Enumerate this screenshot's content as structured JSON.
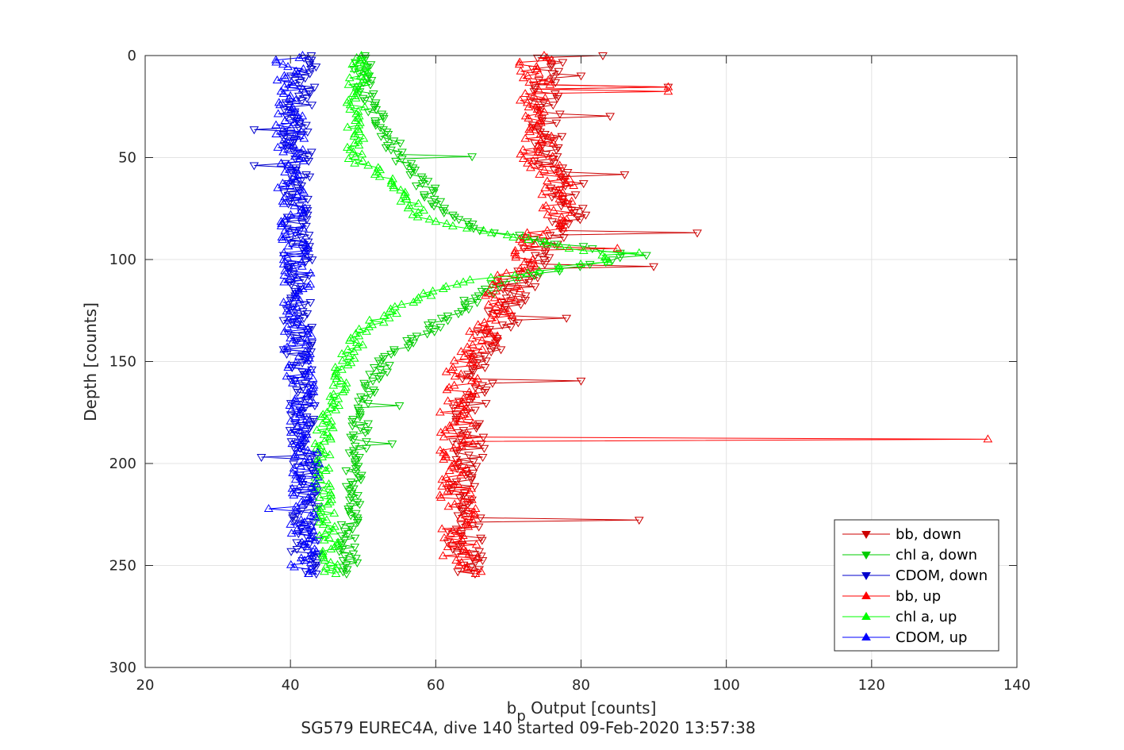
{
  "chart_data": {
    "type": "line",
    "xlabel": {
      "main": "b",
      "sub": "p",
      "rest": " Output [counts]"
    },
    "ylabel": "Depth [counts]",
    "caption": "SG579 EUREC4A, dive 140 started 09-Feb-2020 13:57:38",
    "xlim": [
      20,
      140
    ],
    "ylim": [
      0,
      300
    ],
    "y_reversed": true,
    "x_ticks": [
      "20",
      "40",
      "60",
      "80",
      "100",
      "120",
      "140"
    ],
    "y_ticks": [
      "0",
      "50",
      "100",
      "150",
      "200",
      "250",
      "300"
    ],
    "grid": true,
    "legend_position": "bottom-right",
    "legend": [
      {
        "label": "bb, down",
        "color": "#cc0000",
        "marker": "down"
      },
      {
        "label": "chl a, down",
        "color": "#00cc00",
        "marker": "down"
      },
      {
        "label": "CDOM, down",
        "color": "#0000cc",
        "marker": "down"
      },
      {
        "label": "bb, up",
        "color": "#ff0000",
        "marker": "up"
      },
      {
        "label": "chl a, up",
        "color": "#00ff00",
        "marker": "up"
      },
      {
        "label": "CDOM, up",
        "color": "#0000ff",
        "marker": "up"
      }
    ],
    "series": [
      {
        "name": "bb, down",
        "color": "#cc0000",
        "marker": "down",
        "profile": [
          [
            0,
            75
          ],
          [
            20,
            75
          ],
          [
            50,
            75
          ],
          [
            60,
            78
          ],
          [
            80,
            79
          ],
          [
            90,
            75
          ],
          [
            100,
            74
          ],
          [
            110,
            72
          ],
          [
            130,
            69
          ],
          [
            150,
            66
          ],
          [
            170,
            65
          ],
          [
            200,
            64
          ],
          [
            230,
            64
          ],
          [
            255,
            64
          ]
        ],
        "jitter": 2.5,
        "spikes": [
          [
            0,
            83
          ],
          [
            10,
            80
          ],
          [
            15,
            92
          ],
          [
            30,
            84
          ],
          [
            58,
            86
          ],
          [
            87,
            96
          ],
          [
            103,
            90
          ],
          [
            129,
            78
          ],
          [
            159,
            80
          ],
          [
            228,
            88
          ]
        ]
      },
      {
        "name": "chl a, down",
        "color": "#00cc00",
        "marker": "down",
        "profile": [
          [
            0,
            50
          ],
          [
            15,
            50
          ],
          [
            25,
            51
          ],
          [
            35,
            53
          ],
          [
            50,
            55
          ],
          [
            60,
            58
          ],
          [
            75,
            60
          ],
          [
            85,
            66
          ],
          [
            98,
            86
          ],
          [
            103,
            80
          ],
          [
            110,
            70
          ],
          [
            120,
            65
          ],
          [
            130,
            61
          ],
          [
            140,
            57
          ],
          [
            150,
            53
          ],
          [
            170,
            50
          ],
          [
            200,
            49
          ],
          [
            230,
            48
          ],
          [
            255,
            48
          ]
        ],
        "jitter": 1.3,
        "spikes": [
          [
            50,
            65
          ],
          [
            98,
            89
          ],
          [
            190,
            54
          ],
          [
            172,
            55
          ]
        ]
      },
      {
        "name": "CDOM, down",
        "color": "#0000cc",
        "marker": "down",
        "profile": [
          [
            0,
            42
          ],
          [
            30,
            41
          ],
          [
            60,
            41
          ],
          [
            100,
            41
          ],
          [
            150,
            41
          ],
          [
            200,
            42
          ],
          [
            230,
            42
          ],
          [
            255,
            42
          ]
        ],
        "jitter": 2.0,
        "spikes": [
          [
            27,
            33
          ],
          [
            36,
            35
          ],
          [
            54,
            35
          ],
          [
            197,
            36
          ],
          [
            255,
            39
          ]
        ]
      },
      {
        "name": "bb, up",
        "color": "#ff0000",
        "marker": "up",
        "profile": [
          [
            0,
            74
          ],
          [
            20,
            74
          ],
          [
            50,
            74
          ],
          [
            60,
            77
          ],
          [
            80,
            77
          ],
          [
            90,
            74
          ],
          [
            100,
            73
          ],
          [
            110,
            70
          ],
          [
            130,
            68
          ],
          [
            150,
            64
          ],
          [
            170,
            63
          ],
          [
            200,
            63
          ],
          [
            230,
            63
          ],
          [
            255,
            64
          ]
        ],
        "jitter": 2.5,
        "spikes": [
          [
            15,
            92
          ],
          [
            18,
            92
          ],
          [
            95,
            85
          ],
          [
            188,
            136
          ],
          [
            245,
            61
          ]
        ]
      },
      {
        "name": "chl a, up",
        "color": "#00ff00",
        "marker": "up",
        "profile": [
          [
            0,
            50
          ],
          [
            15,
            49
          ],
          [
            30,
            49
          ],
          [
            50,
            49
          ],
          [
            60,
            53
          ],
          [
            70,
            56
          ],
          [
            80,
            58
          ],
          [
            86,
            66
          ],
          [
            95,
            80
          ],
          [
            100,
            85
          ],
          [
            105,
            75
          ],
          [
            112,
            62
          ],
          [
            120,
            57
          ],
          [
            130,
            52
          ],
          [
            140,
            49
          ],
          [
            155,
            47
          ],
          [
            180,
            45
          ],
          [
            200,
            44
          ],
          [
            230,
            45
          ],
          [
            255,
            46
          ]
        ],
        "jitter": 1.3,
        "spikes": [
          [
            97,
            88
          ],
          [
            248,
            44
          ]
        ]
      },
      {
        "name": "CDOM, up",
        "color": "#0000ff",
        "marker": "up",
        "profile": [
          [
            0,
            40
          ],
          [
            30,
            40
          ],
          [
            60,
            40
          ],
          [
            100,
            41
          ],
          [
            150,
            41
          ],
          [
            200,
            42
          ],
          [
            230,
            42
          ],
          [
            255,
            42
          ]
        ],
        "jitter": 2.0,
        "spikes": [
          [
            2,
            38
          ],
          [
            160,
            36
          ],
          [
            222,
            37
          ]
        ]
      }
    ]
  }
}
